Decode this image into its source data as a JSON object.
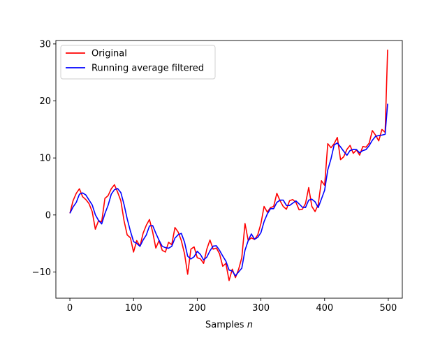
{
  "chart_data": {
    "type": "line",
    "title": "",
    "xlabel_prefix": "Samples ",
    "xlabel_var": "n",
    "ylabel": "",
    "xlim": [
      -22,
      522
    ],
    "ylim": [
      -14.6,
      30.6
    ],
    "xticks": [
      0,
      100,
      200,
      300,
      400,
      500
    ],
    "yticks": [
      -10,
      0,
      10,
      20,
      30
    ],
    "xtick_labels": [
      "0",
      "100",
      "200",
      "300",
      "400",
      "500"
    ],
    "ytick_labels": [
      "−10",
      "0",
      "10",
      "20",
      "30"
    ],
    "grid": false,
    "legend_position": "top-left",
    "series": [
      {
        "name": "Original",
        "color": "#ff0000",
        "x": [
          0,
          5,
          10,
          15,
          20,
          25,
          30,
          35,
          40,
          45,
          50,
          55,
          60,
          65,
          70,
          75,
          80,
          85,
          90,
          95,
          100,
          105,
          110,
          115,
          120,
          125,
          130,
          135,
          140,
          145,
          150,
          155,
          160,
          165,
          170,
          175,
          180,
          185,
          190,
          195,
          200,
          205,
          210,
          215,
          220,
          225,
          230,
          235,
          240,
          245,
          250,
          255,
          260,
          265,
          270,
          275,
          280,
          285,
          290,
          295,
          300,
          305,
          310,
          315,
          320,
          325,
          330,
          335,
          340,
          345,
          350,
          355,
          360,
          365,
          370,
          375,
          380,
          385,
          390,
          395,
          400,
          405,
          410,
          415,
          420,
          425,
          430,
          435,
          440,
          445,
          450,
          455,
          460,
          465,
          470,
          475,
          480,
          485,
          490,
          495,
          499
        ],
        "values": [
          0.3,
          2.5,
          3.8,
          4.6,
          3.2,
          2.7,
          2.0,
          0.6,
          -2.5,
          -1.0,
          -1.2,
          2.9,
          3.4,
          4.6,
          5.3,
          4.0,
          2.5,
          -1.0,
          -3.5,
          -4.0,
          -6.5,
          -4.5,
          -5.5,
          -3.2,
          -1.8,
          -0.8,
          -3.0,
          -5.8,
          -4.5,
          -6.2,
          -6.5,
          -4.8,
          -5.2,
          -2.2,
          -3.0,
          -4.5,
          -6.8,
          -10.4,
          -6.0,
          -5.6,
          -7.5,
          -7.7,
          -8.5,
          -6.0,
          -4.4,
          -6.0,
          -5.8,
          -6.8,
          -9.0,
          -8.5,
          -11.5,
          -9.5,
          -11.0,
          -9.5,
          -7.5,
          -1.5,
          -4.5,
          -4.0,
          -4.3,
          -3.5,
          -1.5,
          1.5,
          0.5,
          1.3,
          1.5,
          3.8,
          2.5,
          1.5,
          1.0,
          2.5,
          2.7,
          2.2,
          0.9,
          1.0,
          2.0,
          4.8,
          1.5,
          0.6,
          1.8,
          6.0,
          5.2,
          12.5,
          11.8,
          12.5,
          13.6,
          9.7,
          10.2,
          11.5,
          12.2,
          10.8,
          11.4,
          10.5,
          12.0,
          11.9,
          12.6,
          14.8,
          14.0,
          13.0,
          15.0,
          14.5,
          29.0
        ],
        "note": ""
      },
      {
        "name": "Running average filtered",
        "color": "#0000ff",
        "values": []
      }
    ]
  }
}
